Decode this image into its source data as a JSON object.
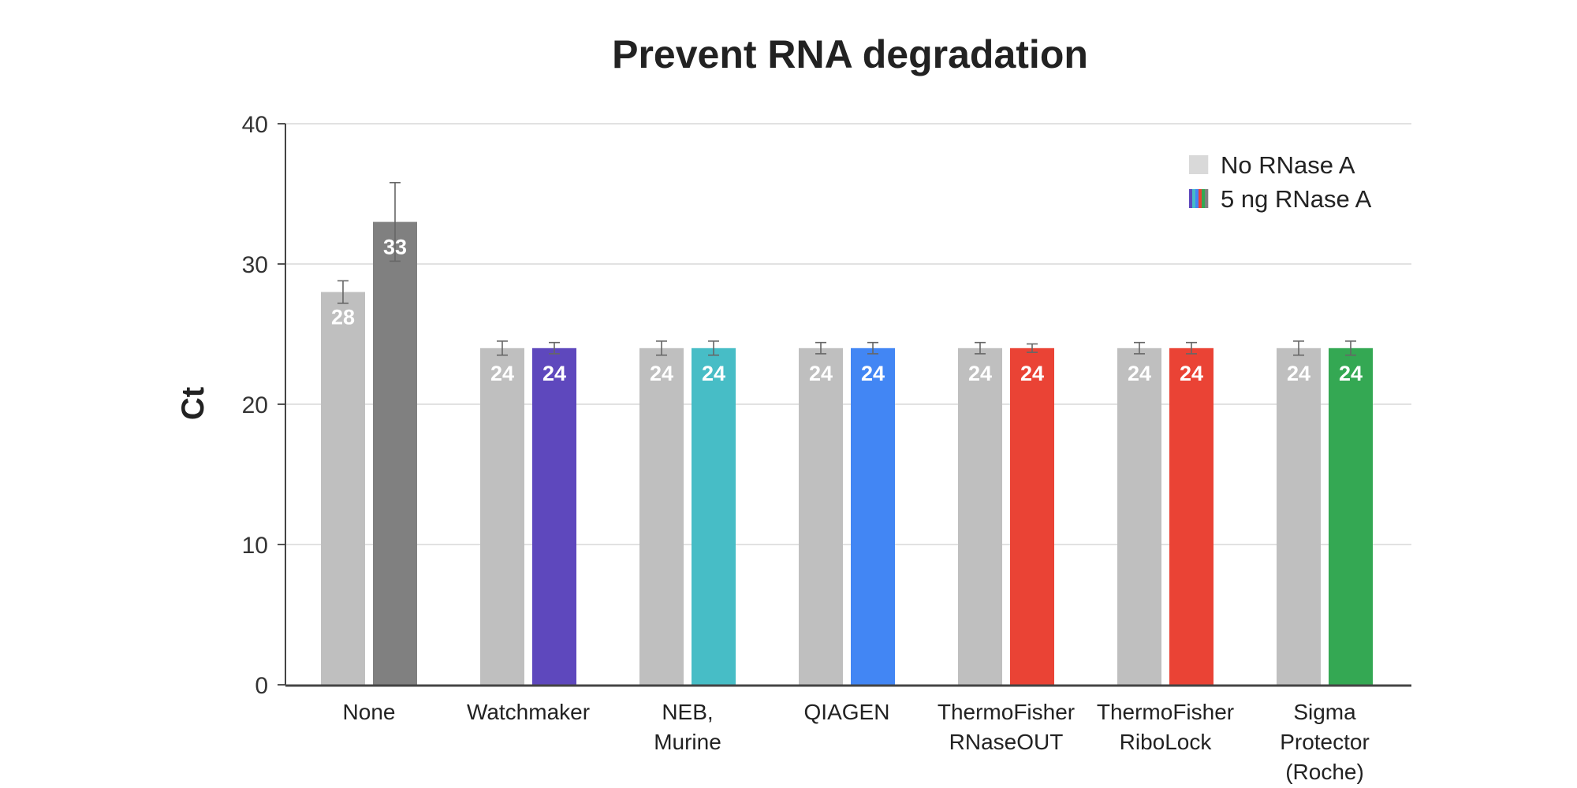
{
  "chart_data": {
    "type": "bar",
    "title": "Prevent RNA degradation",
    "xlabel": "",
    "ylabel": "Ct",
    "ylim": [
      0,
      40
    ],
    "yticks": [
      "0",
      "10",
      "20",
      "30",
      "40"
    ],
    "grid": true,
    "legend_position": "top-right",
    "categories": [
      [
        "None"
      ],
      [
        "Watchmaker"
      ],
      [
        "NEB,",
        "Murine"
      ],
      [
        "QIAGEN"
      ],
      [
        "ThermoFisher",
        "RNaseOUT"
      ],
      [
        "ThermoFisher",
        "RiboLock"
      ],
      [
        "Sigma",
        "Protector",
        "(Roche)"
      ]
    ],
    "series": [
      {
        "name": "No RNase A",
        "values": [
          28,
          24,
          24,
          24,
          24,
          24,
          24
        ],
        "errors": [
          0.8,
          0.5,
          0.5,
          0.4,
          0.4,
          0.4,
          0.5
        ],
        "colors": [
          "#bfbfbf",
          "#bfbfbf",
          "#bfbfbf",
          "#bfbfbf",
          "#bfbfbf",
          "#bfbfbf",
          "#bfbfbf"
        ],
        "labels": [
          "28",
          "24",
          "24",
          "24",
          "24",
          "24",
          "24"
        ]
      },
      {
        "name": "5 ng RNase A",
        "values": [
          33,
          24,
          24,
          24,
          24,
          24,
          24
        ],
        "errors": [
          2.8,
          0.4,
          0.5,
          0.4,
          0.3,
          0.4,
          0.5
        ],
        "colors": [
          "#808080",
          "#5e48bd",
          "#47bdc6",
          "#4286f4",
          "#ea4335",
          "#ea4335",
          "#34a853"
        ],
        "labels": [
          "33",
          "24",
          "24",
          "24",
          "24",
          "24",
          "24"
        ]
      }
    ],
    "legend_swatches": {
      "No RNase A": [
        "#d9d9d9"
      ],
      "5 ng RNase A": [
        "#5e48bd",
        "#47bdc6",
        "#4286f4",
        "#ea4335",
        "#34a853",
        "#808080"
      ]
    }
  }
}
